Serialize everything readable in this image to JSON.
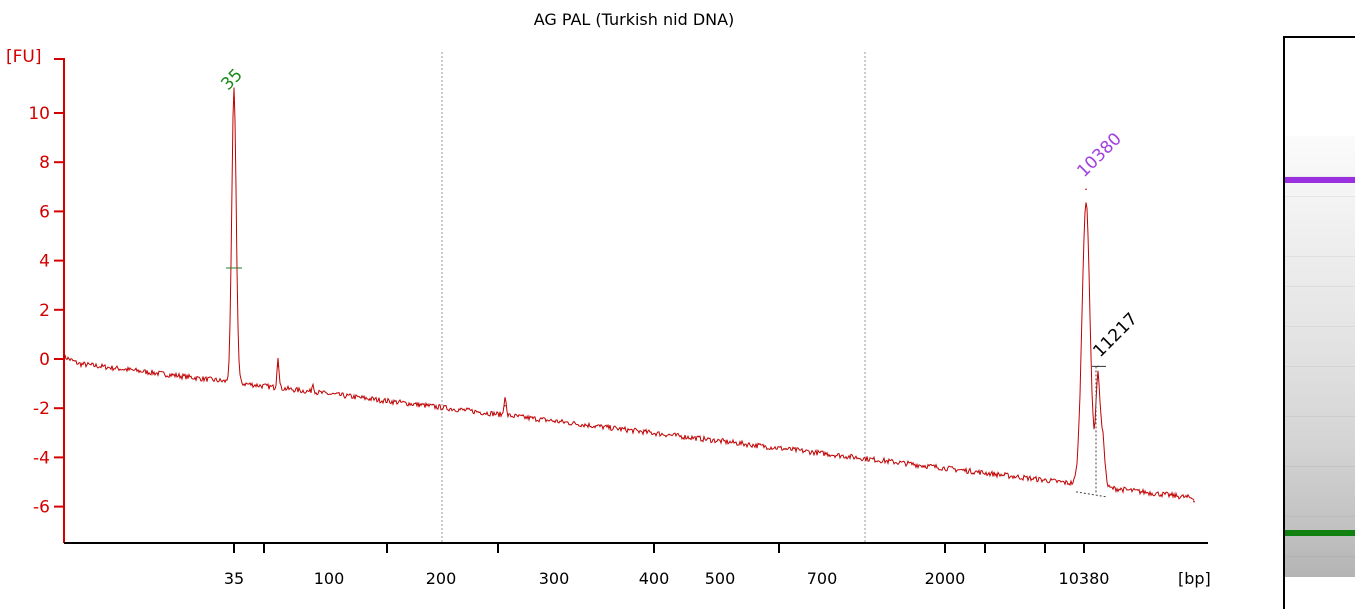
{
  "chart_data": {
    "type": "line",
    "title": "AG PAL (Turkish nid DNA)",
    "ylabel": "[FU]",
    "xlabel": "[bp]",
    "ylim": [
      -7.5,
      12
    ],
    "y_ticks": [
      "10",
      "8",
      "6",
      "4",
      "2",
      "0",
      "-2",
      "-4",
      "-6"
    ],
    "y_tick_values": [
      10,
      8,
      6,
      4,
      2,
      0,
      -2,
      -4,
      -6
    ],
    "x_ticks": [
      "35",
      "100",
      "200",
      "300",
      "400",
      "500",
      "700",
      "2000",
      "10380"
    ],
    "grid": "vertical dotted lines at 200 and 1000 bp",
    "series": [
      {
        "color": "#c00000",
        "x": [
          "start",
          "35",
          "~50",
          "~250",
          "10380",
          "11217",
          "end"
        ],
        "values": [
          0.1,
          10.6,
          -0.3,
          -1.9,
          6.9,
          -0.3,
          -5.8
        ]
      }
    ],
    "peaks": [
      {
        "label": "35",
        "color": "#1a8a1a",
        "fu": 10.6
      },
      {
        "label": "10380",
        "color": "#a040e0",
        "fu": 6.9
      },
      {
        "label": "11217",
        "color": "#000000",
        "fu": -0.3
      }
    ],
    "gel": {
      "bands": [
        {
          "color": "#9a30e0",
          "marker": "upper"
        },
        {
          "color": "#108010",
          "marker": "lower"
        }
      ]
    }
  }
}
